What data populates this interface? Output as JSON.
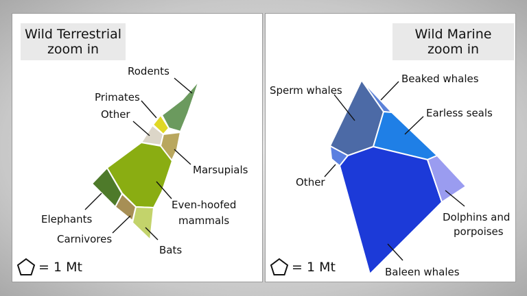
{
  "terrestrial": {
    "title_line1": "Wild Terrestrial",
    "title_line2": "zoom in",
    "labels": {
      "rodents": "Rodents",
      "primates": "Primates",
      "other": "Other",
      "marsupials": "Marsupials",
      "even_hoofed_1": "Even-hoofed",
      "even_hoofed_2": "mammals",
      "elephants": "Elephants",
      "carnivores": "Carnivores",
      "bats": "Bats"
    },
    "scale_text": "= 1 Mt",
    "colors": {
      "rodents": "#6b9a5e",
      "primates": "#e0d825",
      "other": "#dcd6c8",
      "marsupials": "#b9a75e",
      "even_hoofed": "#8aad12",
      "elephants": "#4e7a2a",
      "carnivores": "#a78f55",
      "bats": "#c3d36b"
    }
  },
  "marine": {
    "title_line1": "Wild Marine",
    "title_line2": "zoom in",
    "labels": {
      "sperm_whales": "Sperm whales",
      "beaked_whales": "Beaked whales",
      "earless_seals": "Earless seals",
      "other": "Other",
      "dolphins_1": "Dolphins and",
      "dolphins_2": "porpoises",
      "baleen_whales": "Baleen whales"
    },
    "scale_text": "= 1 Mt",
    "colors": {
      "sperm_whales": "#4c6aa6",
      "beaked_whales": "#5c82d8",
      "earless_seals": "#1f7fe6",
      "other": "#5a7fe0",
      "dolphins": "#9a9cf0",
      "baleen_whales": "#1c3ad8"
    }
  }
}
